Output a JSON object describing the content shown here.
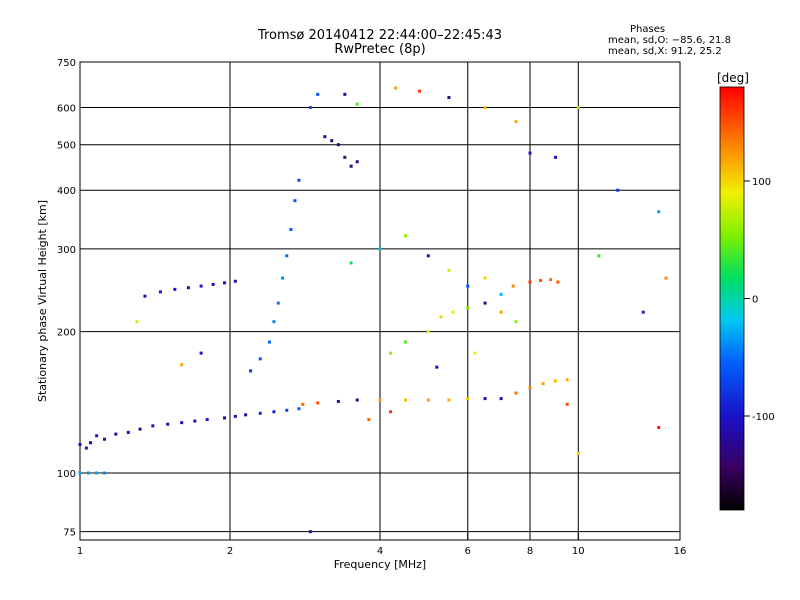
{
  "chart_data": {
    "type": "scatter",
    "title": "Tromsø 20140412 22:44:00–22:45:43",
    "subtitle": "RwPretec (8p)",
    "xlabel": "Frequency [MHz]",
    "ylabel": "Stationary phase Virtual Height [km]",
    "x_scale": "log",
    "y_scale": "log",
    "xlim": [
      1,
      16
    ],
    "ylim": [
      72,
      750
    ],
    "xticks": [
      1,
      2,
      4,
      6,
      8,
      10,
      16
    ],
    "yticks": [
      75,
      100,
      200,
      300,
      400,
      500,
      600,
      750
    ],
    "grid": true,
    "phase_stats": {
      "heading": "Phases",
      "line_o": "mean, sd,O: −85.6, 21.8",
      "line_x": "mean, sd,X:  91.2, 25.2"
    },
    "colorbar": {
      "label": "[deg]",
      "range": [
        -180,
        180
      ],
      "ticks": [
        100,
        0,
        -100
      ],
      "colormap": "rainbow (black-purple-blue-cyan-green-yellow-orange-red)"
    },
    "series": [
      {
        "values": [
          [
            1.0,
            115,
            -110
          ],
          [
            1.03,
            113,
            -95
          ],
          [
            1.05,
            116,
            -120
          ],
          [
            1.08,
            120,
            -100
          ],
          [
            1.12,
            118,
            -105
          ],
          [
            1.18,
            121,
            -115
          ],
          [
            1.25,
            122,
            -100
          ],
          [
            1.32,
            124,
            -120
          ],
          [
            1.4,
            126,
            -105
          ],
          [
            1.5,
            127,
            -110
          ],
          [
            1.6,
            128,
            -100
          ],
          [
            1.7,
            129,
            -115
          ],
          [
            1.8,
            130,
            -95
          ],
          [
            1.95,
            131,
            -110
          ],
          [
            2.05,
            132,
            -100
          ],
          [
            2.15,
            133,
            -120
          ],
          [
            2.3,
            134,
            -85
          ],
          [
            2.45,
            135,
            -90
          ],
          [
            2.6,
            136,
            -70
          ],
          [
            2.75,
            137,
            -60
          ],
          [
            1.0,
            100,
            -30
          ],
          [
            1.04,
            100,
            -35
          ],
          [
            1.08,
            100,
            -30
          ],
          [
            1.12,
            100,
            -40
          ],
          [
            1.35,
            238,
            -110
          ],
          [
            1.45,
            243,
            -95
          ],
          [
            1.55,
            246,
            -100
          ],
          [
            1.65,
            248,
            -105
          ],
          [
            1.75,
            250,
            -95
          ],
          [
            1.85,
            252,
            -110
          ],
          [
            1.95,
            254,
            -100
          ],
          [
            2.05,
            256,
            -105
          ],
          [
            2.2,
            165,
            -80
          ],
          [
            2.3,
            175,
            -60
          ],
          [
            2.4,
            190,
            -50
          ],
          [
            2.45,
            210,
            -40
          ],
          [
            2.5,
            230,
            -45
          ],
          [
            2.55,
            260,
            -40
          ],
          [
            2.6,
            290,
            -50
          ],
          [
            2.65,
            330,
            -55
          ],
          [
            2.7,
            380,
            -60
          ],
          [
            2.75,
            420,
            -65
          ],
          [
            2.9,
            600,
            -60
          ],
          [
            3.0,
            640,
            -65
          ],
          [
            3.1,
            520,
            -120
          ],
          [
            3.2,
            510,
            -130
          ],
          [
            3.3,
            500,
            -125
          ],
          [
            3.4,
            470,
            -140
          ],
          [
            3.5,
            450,
            -135
          ],
          [
            3.6,
            460,
            -130
          ],
          [
            3.4,
            640,
            -110
          ],
          [
            3.6,
            610,
            40
          ],
          [
            2.8,
            140,
            140
          ],
          [
            3.0,
            141,
            150
          ],
          [
            3.3,
            142,
            -110
          ],
          [
            3.6,
            143,
            -115
          ],
          [
            4.0,
            143,
            120
          ],
          [
            4.5,
            143,
            110
          ],
          [
            5.0,
            143,
            120
          ],
          [
            5.5,
            143,
            115
          ],
          [
            6.0,
            144,
            110
          ],
          [
            6.5,
            144,
            -120
          ],
          [
            7.0,
            144,
            -110
          ],
          [
            7.5,
            148,
            140
          ],
          [
            8.0,
            152,
            130
          ],
          [
            8.5,
            155,
            120
          ],
          [
            9.0,
            157,
            110
          ],
          [
            9.5,
            158,
            115
          ],
          [
            4.2,
            180,
            60
          ],
          [
            4.5,
            190,
            40
          ],
          [
            5.0,
            200,
            90
          ],
          [
            5.3,
            215,
            100
          ],
          [
            5.6,
            220,
            90
          ],
          [
            6.0,
            225,
            50
          ],
          [
            6.5,
            230,
            -130
          ],
          [
            7.0,
            220,
            120
          ],
          [
            7.4,
            250,
            130
          ],
          [
            8.0,
            255,
            160
          ],
          [
            8.4,
            257,
            150
          ],
          [
            8.8,
            258,
            140
          ],
          [
            9.1,
            255,
            150
          ],
          [
            3.5,
            280,
            20
          ],
          [
            4.0,
            300,
            -20
          ],
          [
            4.5,
            320,
            60
          ],
          [
            5.0,
            290,
            -100
          ],
          [
            5.5,
            270,
            80
          ],
          [
            6.0,
            250,
            -60
          ],
          [
            6.5,
            260,
            100
          ],
          [
            7.0,
            240,
            -20
          ],
          [
            7.5,
            210,
            60
          ],
          [
            4.3,
            660,
            120
          ],
          [
            4.8,
            650,
            160
          ],
          [
            5.5,
            630,
            -130
          ],
          [
            6.5,
            600,
            110
          ],
          [
            7.5,
            560,
            120
          ],
          [
            8.0,
            480,
            -100
          ],
          [
            9.0,
            470,
            -110
          ],
          [
            10.0,
            600,
            70
          ],
          [
            12.0,
            400,
            -80
          ],
          [
            14.5,
            360,
            -30
          ],
          [
            15.0,
            260,
            130
          ],
          [
            14.5,
            125,
            170
          ],
          [
            13.5,
            220,
            -90
          ],
          [
            11.0,
            290,
            30
          ],
          [
            1.3,
            210,
            80
          ],
          [
            1.6,
            170,
            120
          ],
          [
            1.75,
            180,
            -100
          ],
          [
            9.5,
            140,
            150
          ],
          [
            10.0,
            110,
            100
          ],
          [
            2.9,
            75,
            -110
          ],
          [
            3.8,
            130,
            140
          ],
          [
            4.2,
            135,
            160
          ],
          [
            5.2,
            168,
            -110
          ],
          [
            6.2,
            180,
            90
          ]
        ]
      }
    ]
  }
}
